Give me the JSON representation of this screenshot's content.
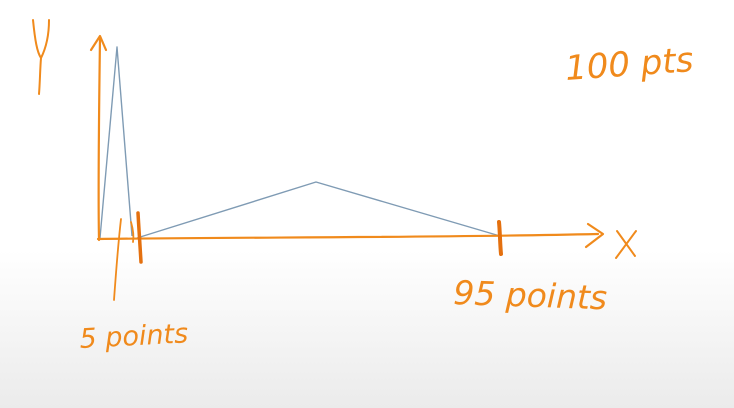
{
  "diagram": {
    "y_axis_label": "Y",
    "x_axis_label": "X",
    "total_label": "100 pts",
    "left_cluster_label": "5 points",
    "right_cluster_label": "95 points",
    "colors": {
      "ink": "#f08a1c",
      "curve": "#7f9bb4",
      "background": "#ffffff"
    }
  }
}
